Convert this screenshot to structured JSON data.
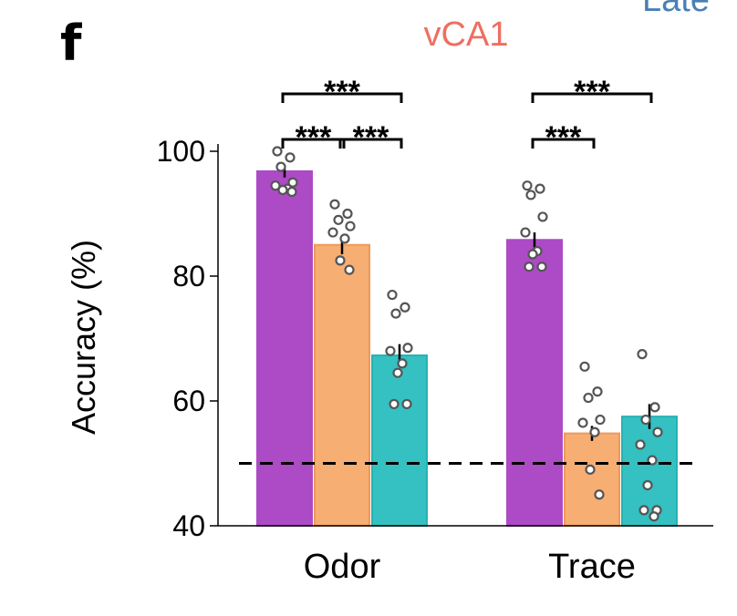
{
  "panel_label": "f",
  "clipped_text": "Late",
  "colors": {
    "series": [
      "#ad4ac6",
      "#f7ae72",
      "#35c0c1"
    ],
    "series_edge": [
      "#ad4ac6",
      "#ee9a58",
      "#26b2b5"
    ],
    "title": "#ef6e61",
    "clipped": "#4a7fb5"
  },
  "chart_data": {
    "type": "bar",
    "title": "vCA1",
    "xlabel": "",
    "ylabel": "Accuracy (%)",
    "ylim": [
      40,
      100
    ],
    "yticks": [
      40,
      60,
      80,
      100
    ],
    "categories": [
      "Odor",
      "Trace"
    ],
    "chance_line": 50,
    "series": [
      {
        "means": [
          96.8,
          85.8
        ],
        "sem": [
          1.0,
          1.2
        ],
        "points": [
          [
            100,
            99,
            97.5,
            95,
            94.5,
            94,
            93.8,
            93.5
          ],
          [
            94.5,
            94,
            93,
            89.5,
            87,
            84,
            83.5,
            81.5,
            81.5
          ]
        ]
      },
      {
        "means": [
          85.0,
          54.8
        ],
        "sem": [
          1.5,
          1.2
        ],
        "points": [
          [
            91.5,
            90,
            89,
            88,
            87,
            86,
            82.5,
            81
          ],
          [
            65.5,
            61.5,
            60.5,
            57,
            56.5,
            55,
            49,
            45
          ]
        ]
      },
      {
        "means": [
          67.3,
          57.5
        ],
        "sem": [
          1.8,
          2.0
        ],
        "points": [
          [
            77,
            75,
            74,
            68.5,
            68,
            66,
            64.5,
            59.5,
            59.5
          ],
          [
            67.5,
            59,
            57,
            55,
            53,
            50.5,
            46.5,
            42.5,
            42.5,
            41.5
          ]
        ]
      }
    ],
    "significance": [
      {
        "category": 0,
        "from": 0,
        "to": 2,
        "label": "***",
        "level": 2
      },
      {
        "category": 0,
        "from": 0,
        "to": 1,
        "label": "***",
        "level": 1
      },
      {
        "category": 0,
        "from": 1,
        "to": 2,
        "label": "***",
        "level": 1
      },
      {
        "category": 1,
        "from": 0,
        "to": 2,
        "label": "***",
        "level": 2
      },
      {
        "category": 1,
        "from": 0,
        "to": 1,
        "label": "***",
        "level": 1
      }
    ]
  }
}
